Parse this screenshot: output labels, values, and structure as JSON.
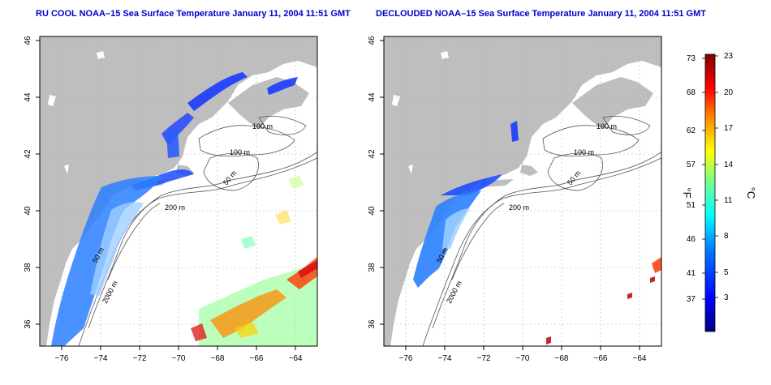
{
  "panels": [
    {
      "title": "RU COOL NOAA–15 Sea Surface Temperature January 11, 2004 11:51 GMT",
      "x_ticks": [
        "−76",
        "−74",
        "−72",
        "−70",
        "−68",
        "−66",
        "−64"
      ],
      "y_ticks": [
        "46",
        "44",
        "42",
        "40",
        "38",
        "36"
      ],
      "contour_labels": [
        "100 m",
        "100 m",
        "50 m",
        "200 m",
        "50 m",
        "2000 m"
      ]
    },
    {
      "title": "DECLOUDED NOAA–15 Sea Surface Temperature January 11, 2004 11:51 GMT",
      "x_ticks": [
        "−76",
        "−74",
        "−72",
        "−70",
        "−68",
        "−66",
        "−64"
      ],
      "y_ticks": [
        "46",
        "44",
        "42",
        "40",
        "38",
        "36"
      ],
      "contour_labels": [
        "100 m",
        "100 m",
        "50 m",
        "200 m",
        "50 m",
        "2000 m"
      ]
    }
  ],
  "colorbar": {
    "f_label": "°F",
    "c_label": "°C",
    "f_ticks": [
      "73",
      "68",
      "62",
      "57",
      "51",
      "46",
      "41",
      "37"
    ],
    "c_ticks": [
      "23",
      "20",
      "17",
      "14",
      "11",
      "8",
      "5",
      "3"
    ],
    "colors": [
      "#00007f",
      "#0000ff",
      "#007fff",
      "#00ffff",
      "#7fff7f",
      "#ffff00",
      "#ff7f00",
      "#ff0000",
      "#7f0000"
    ]
  },
  "colors": {
    "land": "#bebebe",
    "title": "#0000cc"
  }
}
